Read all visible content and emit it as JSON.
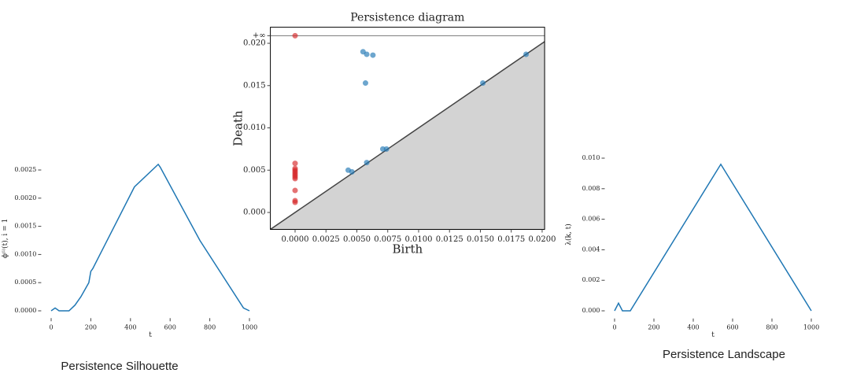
{
  "chart_data": [
    {
      "type": "line",
      "caption": "Persistence Silhouette",
      "xlabel": "t",
      "ylabel": "ϕ⁽ⁱ⁾(t), i = 1",
      "color": "#1f77b4",
      "x": [
        0,
        20,
        40,
        90,
        120,
        150,
        190,
        200,
        210,
        420,
        540,
        550,
        750,
        970,
        1000
      ],
      "values": [
        0,
        5e-05,
        0,
        0,
        0.0001,
        0.00025,
        0.0005,
        0.0007,
        0.00075,
        0.0022,
        0.0026,
        0.00255,
        0.00125,
        5e-05,
        0
      ],
      "xlim": [
        -50,
        1050
      ],
      "ylim": [
        -0.00013,
        0.0027
      ],
      "xticks": [
        0,
        200,
        400,
        600,
        800,
        1000
      ],
      "yticks": [
        {
          "value": 0,
          "label": "0.0000"
        },
        {
          "value": 0.0005,
          "label": "0.0005"
        },
        {
          "value": 0.001,
          "label": "0.0010"
        },
        {
          "value": 0.0015,
          "label": "0.0015"
        },
        {
          "value": 0.002,
          "label": "0.0020"
        },
        {
          "value": 0.0025,
          "label": "0.0025"
        }
      ]
    },
    {
      "type": "scatter",
      "title": "Persistence diagram",
      "xlabel": "Birth",
      "ylabel": "Death",
      "diagonal": true,
      "infinity_line": true,
      "series": [
        {
          "color": "#d62728",
          "x": [
            0,
            0,
            0,
            0,
            0,
            0,
            0,
            0,
            0,
            0,
            0,
            0
          ],
          "values": [
            0.0209,
            0.0058,
            0.0052,
            0.005,
            0.0048,
            0.0046,
            0.0044,
            0.0042,
            0.004,
            0.0026,
            0.0014,
            0.0012
          ]
        },
        {
          "color": "#1f77b4",
          "x": [
            0.0055,
            0.0058,
            0.0063,
            0.0057,
            0.0043,
            0.0046,
            0.0058,
            0.0071,
            0.0074,
            0.0152,
            0.0187
          ],
          "values": [
            0.019,
            0.0187,
            0.0186,
            0.0153,
            0.005,
            0.0048,
            0.0059,
            0.0075,
            0.0075,
            0.0153,
            0.0187
          ]
        }
      ],
      "xlim": [
        -0.002,
        0.0202
      ],
      "ylim": [
        -0.002,
        0.0219
      ],
      "xticks": [
        {
          "value": 0,
          "label": "0.0000"
        },
        {
          "value": 0.0025,
          "label": "0.0025"
        },
        {
          "value": 0.005,
          "label": "0.0050"
        },
        {
          "value": 0.0075,
          "label": "0.0075"
        },
        {
          "value": 0.01,
          "label": "0.0100"
        },
        {
          "value": 0.0125,
          "label": "0.0125"
        },
        {
          "value": 0.015,
          "label": "0.0150"
        },
        {
          "value": 0.0175,
          "label": "0.0175"
        },
        {
          "value": 0.02,
          "label": "0.0200"
        }
      ],
      "yticks": [
        {
          "value": 0,
          "label": "0.000"
        },
        {
          "value": 0.005,
          "label": "0.005"
        },
        {
          "value": 0.01,
          "label": "0.010"
        },
        {
          "value": 0.015,
          "label": "0.015"
        },
        {
          "value": 0.02,
          "label": "0.020"
        },
        {
          "value": 0.0209,
          "label": "+∞"
        }
      ]
    },
    {
      "type": "line",
      "caption": "Persistence Landscape",
      "xlabel": "t",
      "ylabel": "λ(k, t)",
      "color": "#1f77b4",
      "x": [
        0,
        20,
        40,
        80,
        540,
        1000
      ],
      "values": [
        0,
        0.0005,
        0,
        0,
        0.0096,
        0
      ],
      "xlim": [
        -50,
        1050
      ],
      "ylim": [
        -0.0005,
        0.0105
      ],
      "xticks": [
        0,
        200,
        400,
        600,
        800,
        1000
      ],
      "yticks": [
        {
          "value": 0,
          "label": "0.000"
        },
        {
          "value": 0.002,
          "label": "0.002"
        },
        {
          "value": 0.004,
          "label": "0.004"
        },
        {
          "value": 0.006,
          "label": "0.006"
        },
        {
          "value": 0.008,
          "label": "0.008"
        },
        {
          "value": 0.01,
          "label": "0.010"
        }
      ]
    }
  ]
}
